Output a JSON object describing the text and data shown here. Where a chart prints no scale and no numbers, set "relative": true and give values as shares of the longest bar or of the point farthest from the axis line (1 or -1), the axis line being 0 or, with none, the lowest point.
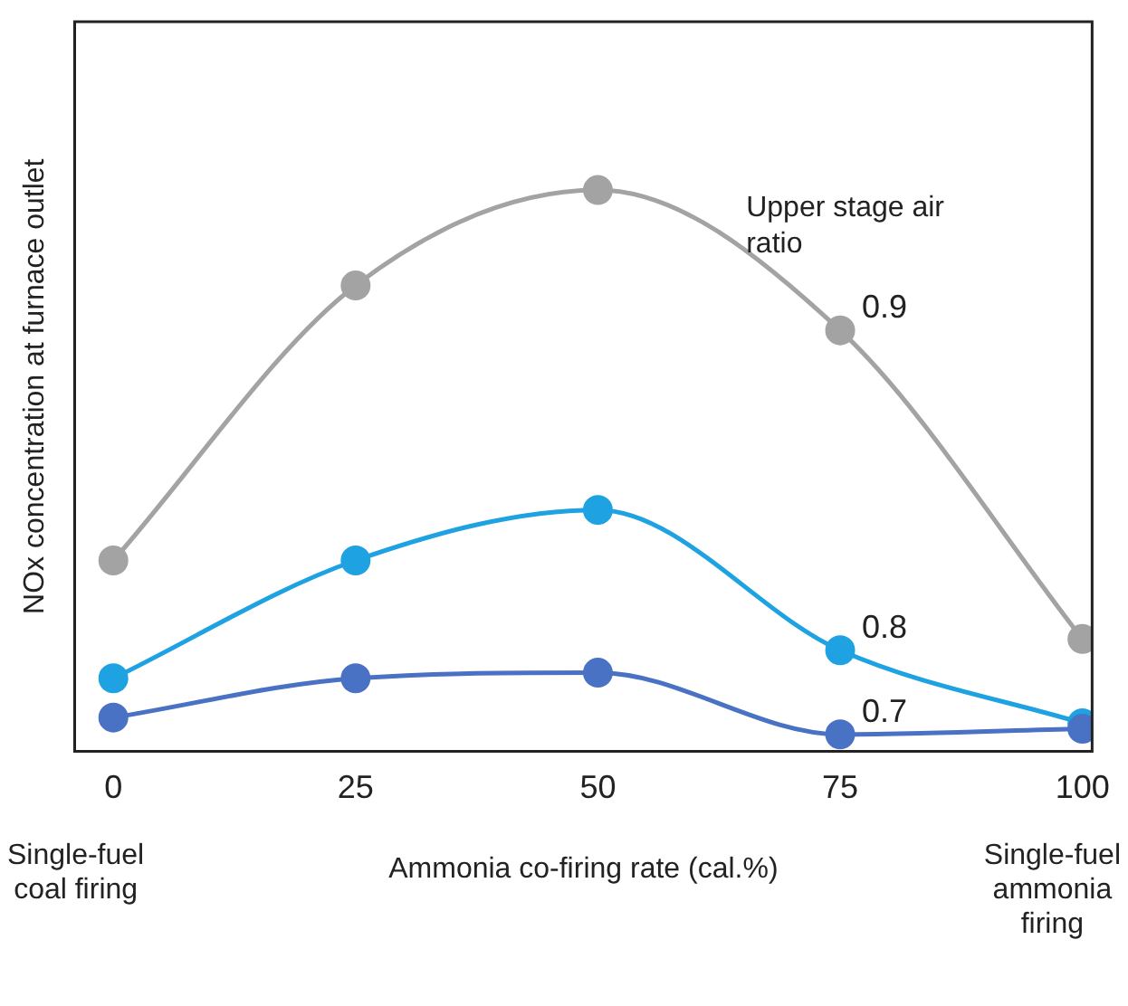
{
  "chart_data": {
    "type": "line",
    "relative": true,
    "xlabel": "Ammonia co-firing rate (cal.%)",
    "ylabel": "NOx concentration at furnace outlet",
    "x": [
      0,
      25,
      50,
      75,
      100
    ],
    "xlim": [
      -4,
      101
    ],
    "xticks": [
      0,
      25,
      50,
      75,
      100
    ],
    "grid": false,
    "legend": false,
    "marker": "circle",
    "line_style": "solid",
    "series": [
      {
        "name": "0.9",
        "color": "#a3a3a3",
        "values": [
          0.34,
          0.83,
          1,
          0.75,
          0.2
        ]
      },
      {
        "name": "0.8",
        "color": "#1ea2e2",
        "values": [
          0.13,
          0.34,
          0.43,
          0.18,
          0.05
        ]
      },
      {
        "name": "0.7",
        "color": "#4a72c4",
        "values": [
          0.06,
          0.13,
          0.14,
          0.03,
          0.04
        ]
      }
    ],
    "annotations": [
      "Upper stage air ratio",
      "Single-fuel coal firing",
      "Single-fuel ammonia firing"
    ]
  }
}
